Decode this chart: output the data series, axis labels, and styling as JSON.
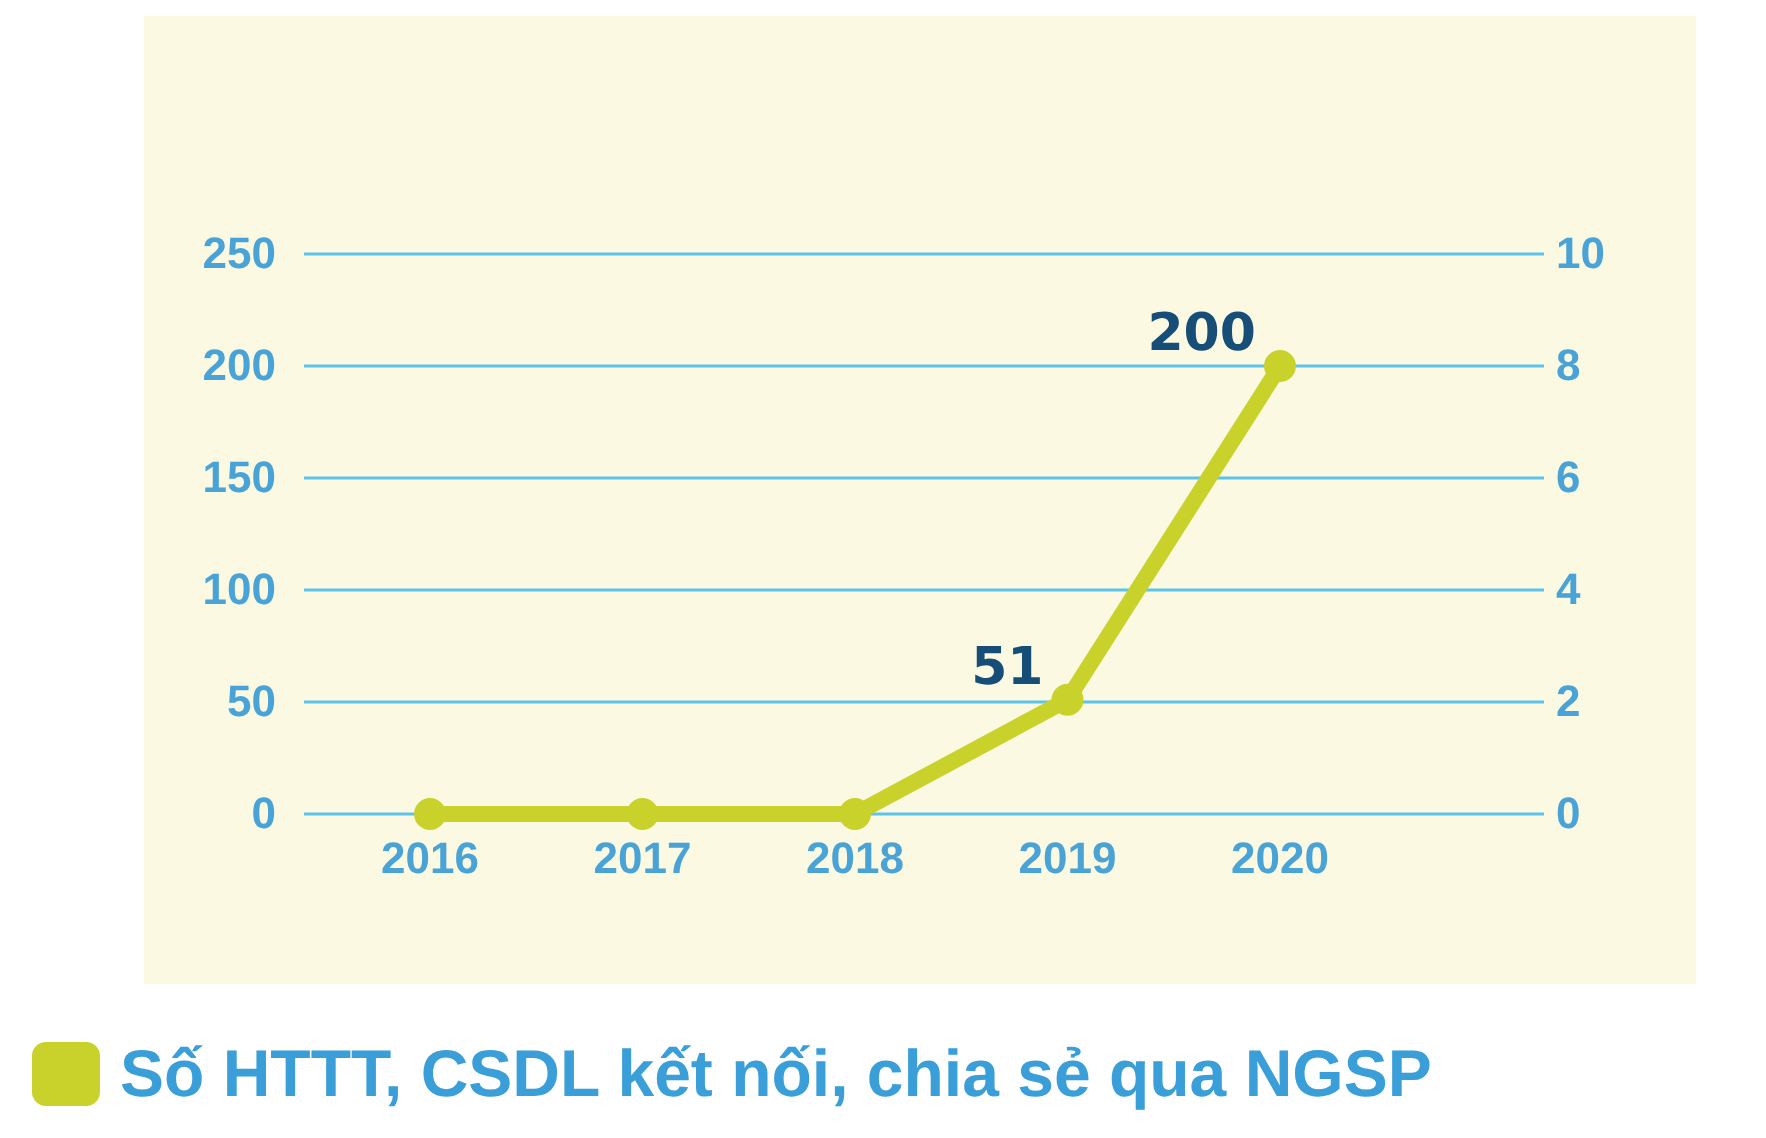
{
  "chart_data": {
    "type": "line",
    "categories": [
      "2016",
      "2017",
      "2018",
      "2019",
      "2020"
    ],
    "series": [
      {
        "name": "Số HTTT, CSDL kết nối, chia sẻ qua NGSP",
        "color": "#c9d12b",
        "values": [
          0,
          0,
          0,
          51,
          200
        ],
        "value_labels": [
          null,
          null,
          null,
          "51",
          "200"
        ]
      }
    ],
    "ylim": [
      0,
      250
    ],
    "yticks": [
      0,
      50,
      100,
      150,
      200,
      250
    ],
    "y2lim": [
      0,
      10
    ],
    "y2ticks": [
      0,
      2,
      4,
      6,
      8,
      10
    ],
    "grid": "y",
    "legend": "bottom",
    "marker": "circle",
    "line_style": "solid"
  }
}
